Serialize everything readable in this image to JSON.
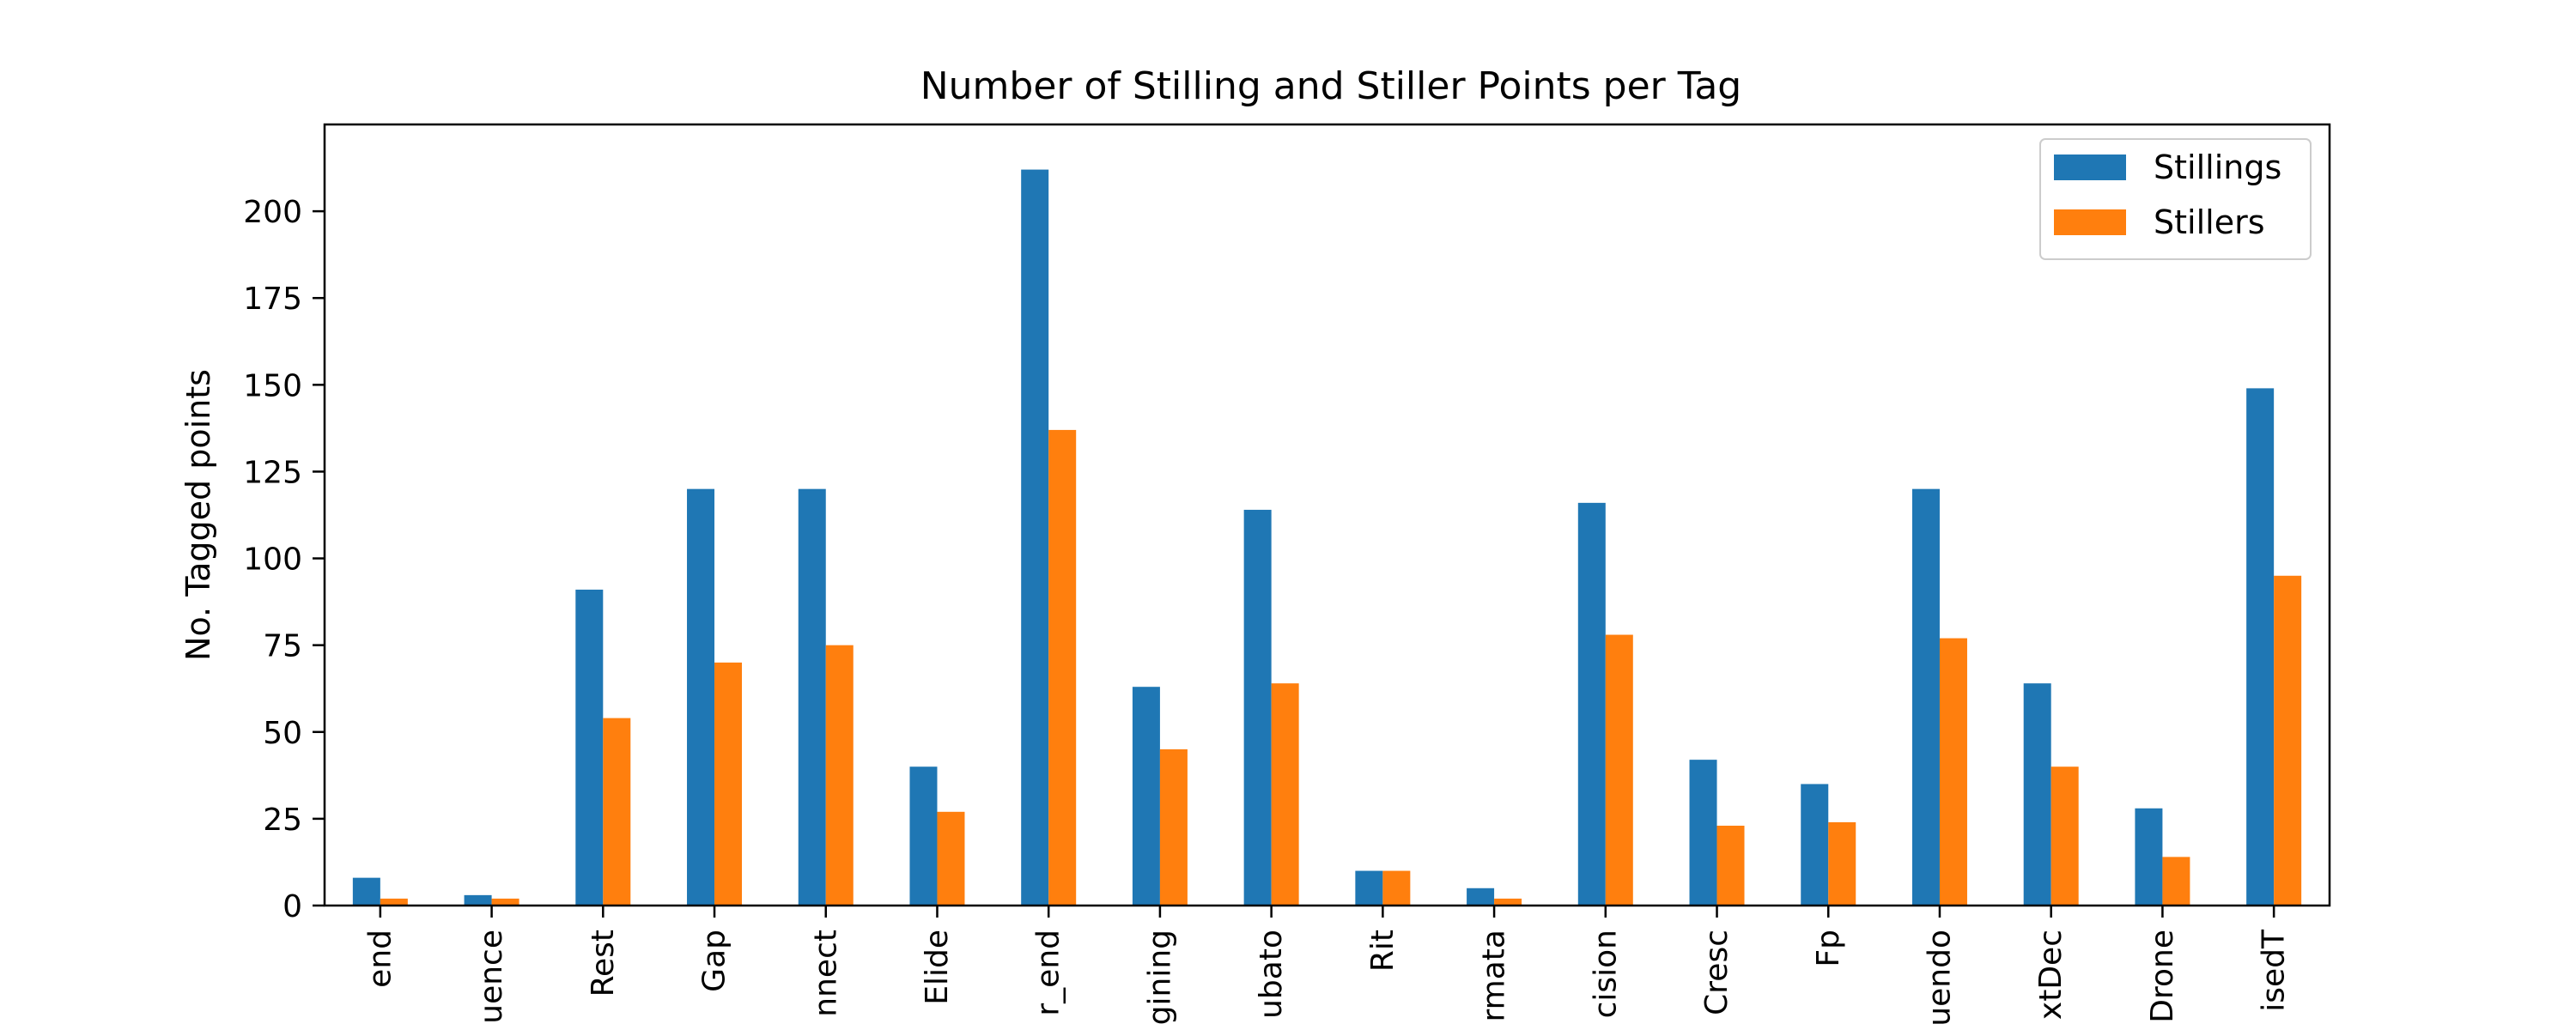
{
  "chart_data": {
    "type": "bar",
    "title": "Number of Stilling and Stiller Points per Tag",
    "xlabel": "",
    "ylabel": "No. Tagged points",
    "ylim": [
      0,
      225
    ],
    "yticks": [
      0,
      25,
      50,
      75,
      100,
      125,
      150,
      175,
      200
    ],
    "grid": false,
    "legend_position": "top-right",
    "categories": [
      "end",
      "uence",
      "Rest",
      "Gap",
      "nnect",
      "Elide",
      "r_end",
      "gining",
      "ubato",
      "Rit",
      "rmata",
      "cision",
      "Cresc",
      "Fp",
      "uendo",
      "xtDec",
      "Drone",
      "isedT"
    ],
    "series": [
      {
        "name": "Stillings",
        "color": "#1f77b4",
        "values": [
          8,
          3,
          91,
          120,
          120,
          40,
          212,
          63,
          114,
          10,
          5,
          116,
          42,
          35,
          120,
          64,
          28,
          149
        ]
      },
      {
        "name": "Stillers",
        "color": "#ff7f0e",
        "values": [
          2,
          2,
          54,
          70,
          75,
          27,
          137,
          45,
          64,
          10,
          2,
          78,
          23,
          24,
          77,
          40,
          14,
          95
        ]
      }
    ]
  }
}
